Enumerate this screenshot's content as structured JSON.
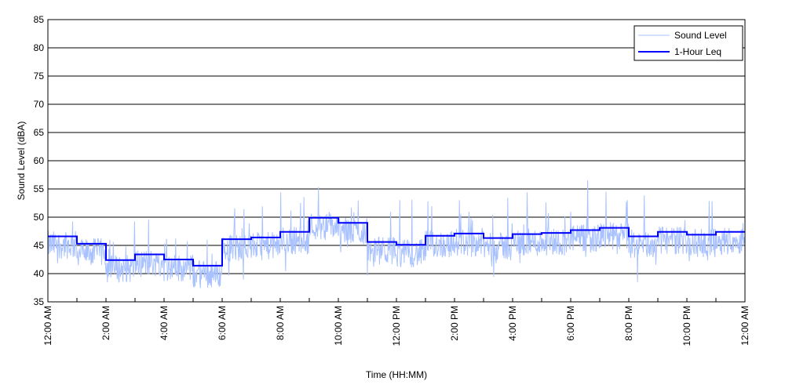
{
  "chart_data": {
    "type": "line",
    "title": "",
    "xlabel": "Time (HH:MM)",
    "ylabel": "Sound Level (dBA)",
    "ylim": [
      35,
      85
    ],
    "yticks": [
      35,
      40,
      45,
      50,
      55,
      60,
      65,
      70,
      75,
      80,
      85
    ],
    "xlim_hours": [
      0,
      24
    ],
    "xtick_labels": [
      "12:00 AM",
      "2:00 AM",
      "4:00 AM",
      "6:00 AM",
      "8:00 AM",
      "10:00 AM",
      "12:00 PM",
      "2:00 PM",
      "4:00 PM",
      "6:00 PM",
      "8:00 PM",
      "10:00 PM",
      "12:00 AM"
    ],
    "grid": "horizontal",
    "legend": {
      "position": "top-right",
      "entries": [
        "Sound Level",
        "1-Hour Leq"
      ]
    },
    "series": [
      {
        "name": "Sound Level",
        "color": "#a9c2ff",
        "note": "noisy per-minute readings fluctuating around hourly Leq, range ~36-57 dBA"
      },
      {
        "name": "1-Hour Leq",
        "color": "#0000ff",
        "hours": [
          0,
          1,
          2,
          3,
          4,
          5,
          6,
          7,
          8,
          9,
          10,
          11,
          12,
          13,
          14,
          15,
          16,
          17,
          18,
          19,
          20,
          21,
          22,
          23
        ],
        "values": [
          46.6,
          45.3,
          42.4,
          43.4,
          42.5,
          41.4,
          46.1,
          46.4,
          47.4,
          49.9,
          49.0,
          45.6,
          45.1,
          46.7,
          47.1,
          46.3,
          47.0,
          47.2,
          47.7,
          48.1,
          46.6,
          47.4,
          46.9,
          47.4
        ]
      }
    ]
  }
}
